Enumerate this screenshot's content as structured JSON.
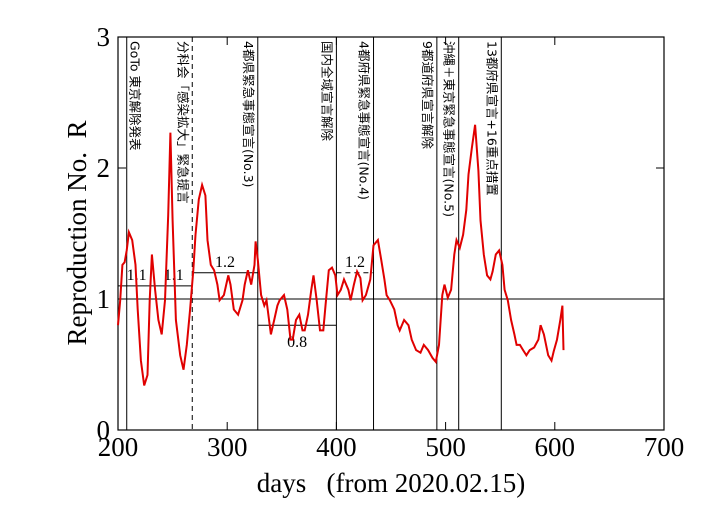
{
  "chart_data": {
    "type": "line",
    "xlabel": "days   (from 2020.02.15)",
    "ylabel": "Reproduction No.  R",
    "xlim": [
      200,
      700
    ],
    "xticks": [
      200,
      300,
      400,
      500,
      600,
      700
    ],
    "ylim": [
      0,
      3
    ],
    "yticks": [
      0,
      1,
      2,
      3
    ],
    "reference_line": 1,
    "series": [
      {
        "name": "R",
        "color": "#e00000",
        "x": [
          200,
          202,
          204,
          206,
          208,
          210,
          213,
          216,
          218,
          221,
          224,
          227,
          229,
          231,
          234,
          237,
          240,
          243,
          246,
          248,
          250,
          253,
          257,
          260,
          263,
          266,
          269,
          271,
          274,
          277,
          280,
          282,
          285,
          288,
          291,
          293,
          297,
          301,
          303,
          306,
          310,
          314,
          316,
          319,
          322,
          325,
          326,
          328,
          331,
          334,
          336,
          340,
          343,
          346,
          348,
          352,
          355,
          358,
          360,
          363,
          366,
          369,
          371,
          374,
          377,
          379,
          382,
          385,
          388,
          390,
          393,
          396,
          399,
          401,
          404,
          407,
          411,
          413,
          416,
          419,
          422,
          424,
          427,
          431,
          434,
          438,
          441,
          444,
          446,
          449,
          453,
          456,
          458,
          462,
          466,
          469,
          473,
          477,
          480,
          484,
          488,
          491,
          494,
          497,
          499,
          502,
          505,
          508,
          510,
          513,
          516,
          519,
          521,
          524,
          527,
          530,
          532,
          535,
          538,
          541,
          543,
          546,
          549,
          552,
          554,
          557,
          560,
          563,
          565,
          568,
          571,
          574,
          577,
          581,
          585,
          587,
          590,
          594,
          597,
          599,
          602,
          605,
          607,
          608
        ],
        "values": [
          0.8,
          0.99,
          1.26,
          1.28,
          1.37,
          1.51,
          1.45,
          1.26,
          0.92,
          0.53,
          0.34,
          0.42,
          0.99,
          1.34,
          1.07,
          0.84,
          0.73,
          0.99,
          1.64,
          2.27,
          1.6,
          0.84,
          0.57,
          0.46,
          0.65,
          0.92,
          1.22,
          1.49,
          1.76,
          1.87,
          1.79,
          1.45,
          1.26,
          1.22,
          1.11,
          0.99,
          1.03,
          1.18,
          1.11,
          0.92,
          0.88,
          0.99,
          1.11,
          1.22,
          1.11,
          1.26,
          1.44,
          1.3,
          1.03,
          0.95,
          0.99,
          0.73,
          0.84,
          0.95,
          0.99,
          1.03,
          0.92,
          0.69,
          0.69,
          0.84,
          0.88,
          0.76,
          0.76,
          0.88,
          1.07,
          1.18,
          0.99,
          0.76,
          0.76,
          0.95,
          1.22,
          1.24,
          1.18,
          1.03,
          1.07,
          1.15,
          1.07,
          0.99,
          1.11,
          1.21,
          1.16,
          0.99,
          1.03,
          1.15,
          1.41,
          1.45,
          1.3,
          1.15,
          1.03,
          0.99,
          0.92,
          0.8,
          0.76,
          0.84,
          0.8,
          0.69,
          0.61,
          0.59,
          0.65,
          0.61,
          0.55,
          0.52,
          0.65,
          1.03,
          1.11,
          1.01,
          1.07,
          1.34,
          1.45,
          1.39,
          1.49,
          1.68,
          1.95,
          2.15,
          2.33,
          1.98,
          1.6,
          1.34,
          1.18,
          1.15,
          1.21,
          1.34,
          1.37,
          1.26,
          1.07,
          0.99,
          0.84,
          0.73,
          0.65,
          0.65,
          0.61,
          0.57,
          0.61,
          0.63,
          0.69,
          0.8,
          0.73,
          0.57,
          0.53,
          0.6,
          0.69,
          0.84,
          0.95,
          0.61
        ]
      }
    ],
    "events": [
      {
        "x": 208,
        "text": "GoTo 東京解除発表",
        "style": "solid"
      },
      {
        "x": 268,
        "text": "分科会「感染拡大」緊急提言",
        "style": "dashed"
      },
      {
        "x": 328,
        "text": "4都県緊急事態宣言(No.3)",
        "style": "solid"
      },
      {
        "x": 400,
        "text": "国内全域宣言解除",
        "style": "solid"
      },
      {
        "x": 434,
        "text": "4都府県緊急事態宣言(No.4)",
        "style": "solid"
      },
      {
        "x": 492,
        "text": "9都道府県宣言解除",
        "style": "solid"
      },
      {
        "x": 512,
        "text": "沖縄＋東京緊急事態宣言(No.5)",
        "style": "solid"
      },
      {
        "x": 551,
        "text": "13都府県宣言+16重点措置",
        "style": "solid"
      }
    ],
    "levels": [
      {
        "from": 200,
        "to": 234,
        "value": 1.1,
        "style": "solid"
      },
      {
        "from": 234,
        "to": 268,
        "value": 1.1,
        "style": "solid"
      },
      {
        "from": 268,
        "to": 328,
        "value": 1.2,
        "style": "solid"
      },
      {
        "from": 328,
        "to": 400,
        "value": 0.8,
        "style": "solid"
      },
      {
        "from": 400,
        "to": 434,
        "value": 1.2,
        "style": "dashed"
      }
    ]
  }
}
